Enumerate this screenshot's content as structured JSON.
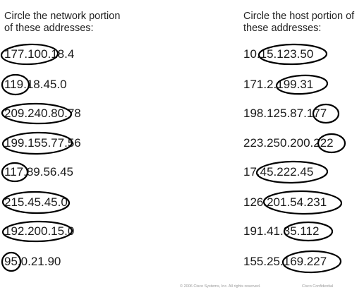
{
  "left_column": {
    "heading_line1": "Circle the network portion",
    "heading_line2": "of these addresses:",
    "rows": [
      {
        "circled": "177.100.",
        "rest": "18.4"
      },
      {
        "circled": "119.",
        "rest": "18.45.0"
      },
      {
        "circled": "209.240.80.",
        "rest": "78"
      },
      {
        "circled": "199.155.77.",
        "rest": "56"
      },
      {
        "circled": "117.",
        "rest": "89.56.45"
      },
      {
        "circled": "215.45.45.",
        "rest": "0"
      },
      {
        "circled": "192.200.15.",
        "rest": "0"
      },
      {
        "circled": "95.",
        "rest": "0.21.90"
      }
    ]
  },
  "right_column": {
    "heading_line1": "Circle the host portion of",
    "heading_line2": "these addresses:",
    "rows": [
      {
        "rest": "10.",
        "circled": "15.123.50"
      },
      {
        "rest": "171.2.",
        "circled": "199.31"
      },
      {
        "rest": "198.125.87.",
        "circled": "177"
      },
      {
        "rest": "223.250.200.",
        "circled": "222"
      },
      {
        "rest": "17.",
        "circled": "45.222.45"
      },
      {
        "rest": "126.",
        "circled": "201.54.231"
      },
      {
        "rest": "191.41.",
        "circled": "35.112"
      },
      {
        "rest": "155.25.",
        "circled": "169.227"
      }
    ]
  },
  "footer": {
    "copyright": "© 2006 Cisco Systems, Inc. All rights reserved.",
    "confidential": "Cisco Confidential"
  }
}
